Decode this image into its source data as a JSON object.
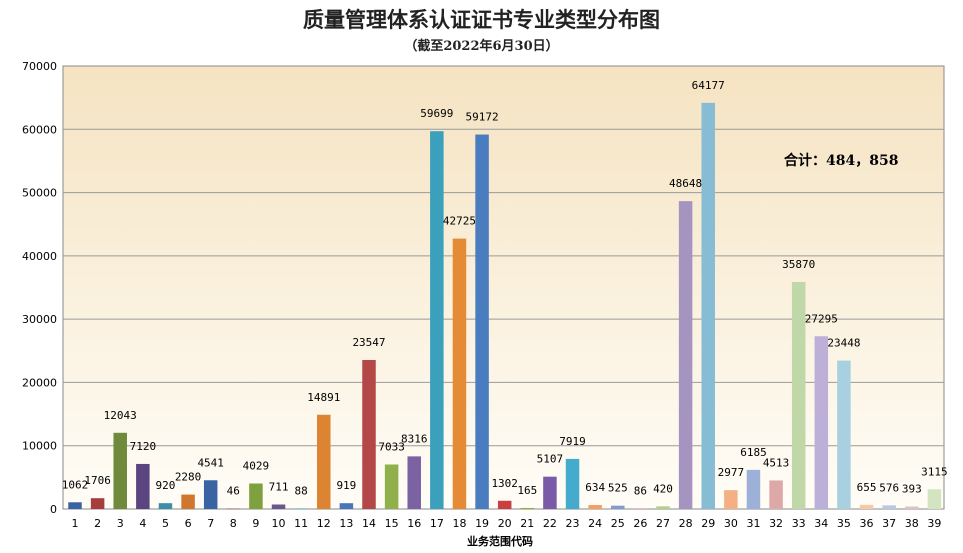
{
  "chart_data": {
    "type": "bar",
    "title": "质量管理体系认证证书专业类型分布图",
    "subtitle": "（截至2022年6月30日）",
    "xlabel": "业务范围代码",
    "ylabel": "",
    "ylim": [
      0,
      70000
    ],
    "yticks": [
      0,
      10000,
      20000,
      30000,
      40000,
      50000,
      60000,
      70000
    ],
    "grid": true,
    "total_label": "合计：484，858",
    "categories": [
      "1",
      "2",
      "3",
      "4",
      "5",
      "6",
      "7",
      "8",
      "9",
      "10",
      "11",
      "12",
      "13",
      "14",
      "15",
      "16",
      "17",
      "18",
      "19",
      "20",
      "21",
      "22",
      "23",
      "24",
      "25",
      "26",
      "27",
      "28",
      "29",
      "30",
      "31",
      "32",
      "33",
      "34",
      "35",
      "36",
      "37",
      "38",
      "39"
    ],
    "values": [
      1062,
      1706,
      12043,
      7120,
      920,
      2280,
      4541,
      46,
      4029,
      711,
      88,
      14891,
      919,
      23547,
      7033,
      8316,
      59699,
      42725,
      59172,
      1302,
      165,
      5107,
      7919,
      634,
      525,
      86,
      420,
      48648,
      64177,
      2977,
      6185,
      4513,
      35870,
      27295,
      23448,
      655,
      576,
      393,
      3115
    ],
    "colors": [
      "#3a63a3",
      "#a63c3c",
      "#6e8a3a",
      "#5b4581",
      "#3d8fa8",
      "#d1762d",
      "#3a63a3",
      "#a63c3c",
      "#7fa03e",
      "#6b548f",
      "#46a2bb",
      "#dd8433",
      "#4a76b8",
      "#b44848",
      "#8fb04a",
      "#7a62a3",
      "#3aa0bc",
      "#e58a35",
      "#4a7cc0",
      "#c94040",
      "#8ab43a",
      "#7a5aa8",
      "#45abcc",
      "#f4a064",
      "#7f9ccc",
      "#d68888",
      "#b4cc8c",
      "#a594c0",
      "#86bcd4",
      "#f4b084",
      "#9cb0d8",
      "#dca8a8",
      "#c0d8a8",
      "#bcb0d8",
      "#a8d0e0",
      "#f8c8a4",
      "#b8c8e4",
      "#e4c0c0",
      "#d4e4c0"
    ]
  }
}
